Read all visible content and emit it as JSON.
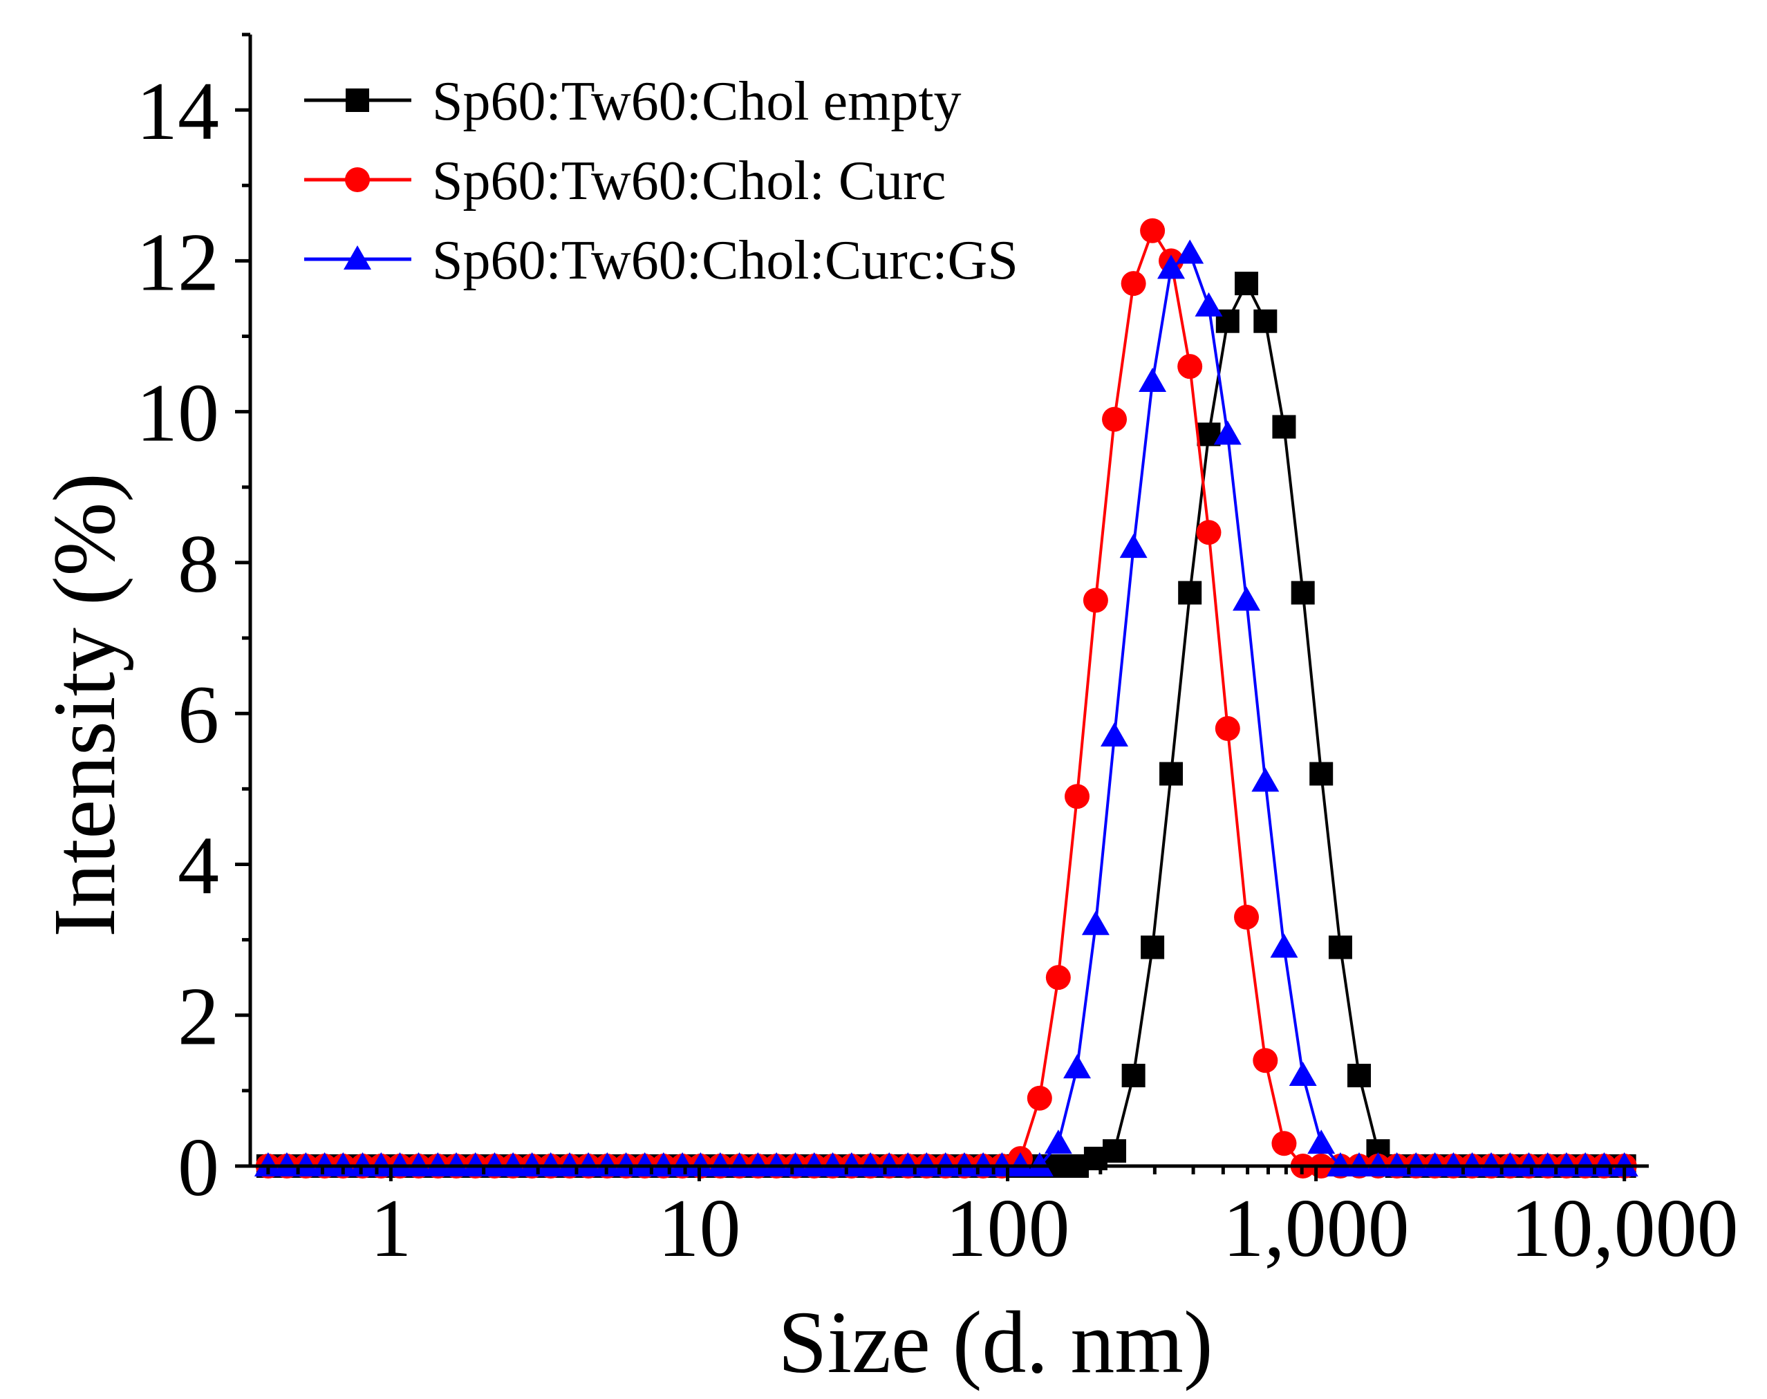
{
  "chart_data": {
    "type": "line",
    "title": "",
    "xlabel": "Size (d. nm)",
    "ylabel": "Intensity (%)",
    "xscale": "log",
    "xlim": [
      0.35,
      12000
    ],
    "ylim": [
      0,
      15
    ],
    "x_ticks": [
      1,
      10,
      100,
      1000,
      10000
    ],
    "x_tick_labels": [
      "1",
      "10",
      "100",
      "1,000",
      "10,000"
    ],
    "y_ticks": [
      0,
      2,
      4,
      6,
      8,
      10,
      12,
      14
    ],
    "y_tick_labels": [
      "0",
      "2",
      "4",
      "6",
      "8",
      "10",
      "12",
      "14"
    ],
    "legend_position": "top-left",
    "series": [
      {
        "name": "Sp60:Tw60:Chol empty",
        "color": "#000000",
        "marker": "square",
        "x": [
          0.4,
          0.46,
          0.53,
          0.61,
          0.7,
          0.81,
          0.93,
          1.07,
          1.23,
          1.42,
          1.63,
          1.88,
          2.17,
          2.49,
          2.87,
          3.3,
          3.8,
          4.37,
          5.03,
          5.79,
          6.66,
          7.66,
          8.82,
          10.1,
          11.7,
          13.5,
          15.5,
          17.8,
          20.5,
          23.6,
          27.1,
          31.2,
          35.9,
          41.3,
          47.5,
          54.6,
          62.9,
          72.4,
          83.3,
          95.9,
          110,
          127,
          146,
          168,
          193,
          222,
          256,
          295,
          339,
          390,
          449,
          517,
          595,
          685,
          788,
          907,
          1040,
          1200,
          1380,
          1590,
          1830,
          2110,
          2430,
          2790,
          3210,
          3700,
          4260,
          4900,
          5640,
          6490,
          7470,
          8600,
          10000
        ],
        "values": [
          0,
          0,
          0,
          0,
          0,
          0,
          0,
          0,
          0,
          0,
          0,
          0,
          0,
          0,
          0,
          0,
          0,
          0,
          0,
          0,
          0,
          0,
          0,
          0,
          0,
          0,
          0,
          0,
          0,
          0,
          0,
          0,
          0,
          0,
          0,
          0,
          0,
          0,
          0,
          0,
          0,
          0,
          0,
          0,
          0.1,
          0.2,
          1.2,
          2.9,
          5.2,
          7.6,
          9.7,
          11.2,
          11.7,
          11.2,
          9.8,
          7.6,
          5.2,
          2.9,
          1.2,
          0.2,
          0,
          0,
          0,
          0,
          0,
          0,
          0,
          0,
          0,
          0,
          0,
          0,
          0
        ]
      },
      {
        "name": "Sp60:Tw60:Chol: Curc",
        "color": "#ff0000",
        "marker": "circle",
        "x": [
          0.4,
          0.46,
          0.53,
          0.61,
          0.7,
          0.81,
          0.93,
          1.07,
          1.23,
          1.42,
          1.63,
          1.88,
          2.17,
          2.49,
          2.87,
          3.3,
          3.8,
          4.37,
          5.03,
          5.79,
          6.66,
          7.66,
          8.82,
          10.1,
          11.7,
          13.5,
          15.5,
          17.8,
          20.5,
          23.6,
          27.1,
          31.2,
          35.9,
          41.3,
          47.5,
          54.6,
          62.9,
          72.4,
          83.3,
          95.9,
          110,
          127,
          146,
          168,
          193,
          222,
          256,
          295,
          339,
          390,
          449,
          517,
          595,
          685,
          788,
          907,
          1040,
          1200,
          1380,
          1590,
          1830,
          2110,
          2430,
          2790,
          3210,
          3700,
          4260,
          4900,
          5640,
          6490,
          7470,
          8600,
          10000
        ],
        "values": [
          0,
          0,
          0,
          0,
          0,
          0,
          0,
          0,
          0,
          0,
          0,
          0,
          0,
          0,
          0,
          0,
          0,
          0,
          0,
          0,
          0,
          0,
          0,
          0,
          0,
          0,
          0,
          0,
          0,
          0,
          0,
          0,
          0,
          0,
          0,
          0,
          0,
          0,
          0,
          0,
          0.1,
          0.9,
          2.5,
          4.9,
          7.5,
          9.9,
          11.7,
          12.4,
          12.0,
          10.6,
          8.4,
          5.8,
          3.3,
          1.4,
          0.3,
          0,
          0,
          0,
          0,
          0,
          0,
          0,
          0,
          0,
          0,
          0,
          0,
          0,
          0,
          0,
          0,
          0,
          0
        ]
      },
      {
        "name": "Sp60:Tw60:Chol:Curc:GS",
        "color": "#0000ff",
        "marker": "triangle",
        "x": [
          0.4,
          0.46,
          0.53,
          0.61,
          0.7,
          0.81,
          0.93,
          1.07,
          1.23,
          1.42,
          1.63,
          1.88,
          2.17,
          2.49,
          2.87,
          3.3,
          3.8,
          4.37,
          5.03,
          5.79,
          6.66,
          7.66,
          8.82,
          10.1,
          11.7,
          13.5,
          15.5,
          17.8,
          20.5,
          23.6,
          27.1,
          31.2,
          35.9,
          41.3,
          47.5,
          54.6,
          62.9,
          72.4,
          83.3,
          95.9,
          110,
          127,
          146,
          168,
          193,
          222,
          256,
          295,
          339,
          390,
          449,
          517,
          595,
          685,
          788,
          907,
          1040,
          1200,
          1380,
          1590,
          1830,
          2110,
          2430,
          2790,
          3210,
          3700,
          4260,
          4900,
          5640,
          6490,
          7470,
          8600,
          10000
        ],
        "values": [
          0,
          0,
          0,
          0,
          0,
          0,
          0,
          0,
          0,
          0,
          0,
          0,
          0,
          0,
          0,
          0,
          0,
          0,
          0,
          0,
          0,
          0,
          0,
          0,
          0,
          0,
          0,
          0,
          0,
          0,
          0,
          0,
          0,
          0,
          0,
          0,
          0,
          0,
          0,
          0,
          0,
          0,
          0.3,
          1.3,
          3.2,
          5.7,
          8.2,
          10.4,
          11.9,
          12.1,
          11.4,
          9.7,
          7.5,
          5.1,
          2.9,
          1.2,
          0.3,
          0,
          0,
          0,
          0,
          0,
          0,
          0,
          0,
          0,
          0,
          0,
          0,
          0,
          0,
          0,
          0
        ]
      }
    ]
  }
}
